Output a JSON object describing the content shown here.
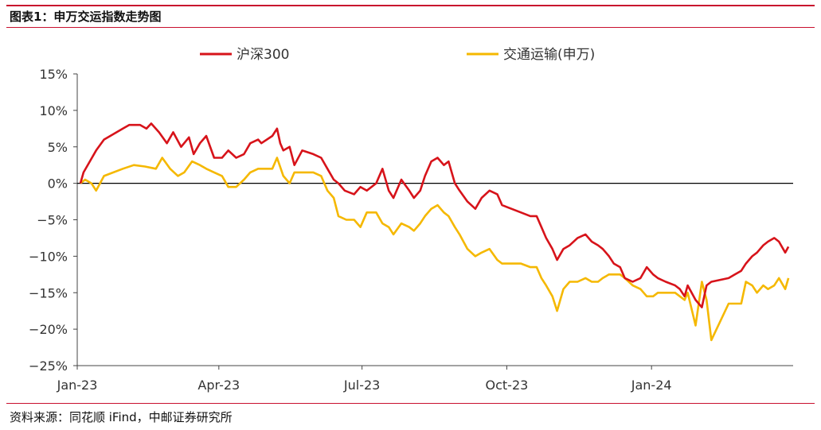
{
  "figure": {
    "title": "图表1：申万交运指数走势图",
    "source": "资料来源：同花顺 iFind，中邮证券研究所"
  },
  "colors": {
    "accent_rule": "#c8102e",
    "zero_line": "#000000",
    "axis": "#444444"
  },
  "chart_data": {
    "type": "line",
    "title": "",
    "xlabel": "",
    "ylabel": "",
    "x_unit": "date",
    "xlim": [
      "2023-01-01",
      "2024-03-31"
    ],
    "ylim": [
      -25,
      15
    ],
    "ytick_values": [
      -25,
      -20,
      -15,
      -10,
      -5,
      0,
      5,
      10,
      15
    ],
    "ytick_labels": [
      "−25%",
      "−20%",
      "−15%",
      "−10%",
      "−5%",
      "0%",
      "5%",
      "10%",
      "15%"
    ],
    "xticks": [
      {
        "date": "2023-01-01",
        "label": "Jan-23"
      },
      {
        "date": "2023-04-01",
        "label": "Apr-23"
      },
      {
        "date": "2023-07-01",
        "label": "Jul-23"
      },
      {
        "date": "2023-10-01",
        "label": "Oct-23"
      },
      {
        "date": "2024-01-01",
        "label": "Jan-24"
      }
    ],
    "grid": false,
    "reference_line": 0,
    "legend": "top",
    "series": [
      {
        "name": "沪深300",
        "color": "#d7131a",
        "points": [
          [
            "2023-01-03",
            0
          ],
          [
            "2023-01-05",
            1.5
          ],
          [
            "2023-01-09",
            3
          ],
          [
            "2023-01-13",
            4.5
          ],
          [
            "2023-01-18",
            6
          ],
          [
            "2023-01-30",
            7.5
          ],
          [
            "2023-02-03",
            8
          ],
          [
            "2023-02-10",
            8
          ],
          [
            "2023-02-14",
            7.5
          ],
          [
            "2023-02-17",
            8.2
          ],
          [
            "2023-02-22",
            7
          ],
          [
            "2023-02-27",
            5.5
          ],
          [
            "2023-03-03",
            7
          ],
          [
            "2023-03-08",
            5
          ],
          [
            "2023-03-13",
            6.3
          ],
          [
            "2023-03-16",
            4
          ],
          [
            "2023-03-20",
            5.5
          ],
          [
            "2023-03-24",
            6.5
          ],
          [
            "2023-03-29",
            3.5
          ],
          [
            "2023-04-03",
            3.5
          ],
          [
            "2023-04-07",
            4.5
          ],
          [
            "2023-04-12",
            3.5
          ],
          [
            "2023-04-17",
            4
          ],
          [
            "2023-04-21",
            5.5
          ],
          [
            "2023-04-26",
            6
          ],
          [
            "2023-04-28",
            5.5
          ],
          [
            "2023-05-05",
            6.5
          ],
          [
            "2023-05-08",
            7.5
          ],
          [
            "2023-05-10",
            5.5
          ],
          [
            "2023-05-12",
            4.5
          ],
          [
            "2023-05-16",
            5
          ],
          [
            "2023-05-19",
            2.5
          ],
          [
            "2023-05-24",
            4.5
          ],
          [
            "2023-05-31",
            4
          ],
          [
            "2023-06-05",
            3.5
          ],
          [
            "2023-06-09",
            2
          ],
          [
            "2023-06-13",
            0.5
          ],
          [
            "2023-06-16",
            0
          ],
          [
            "2023-06-20",
            -1
          ],
          [
            "2023-06-26",
            -1.5
          ],
          [
            "2023-06-30",
            -0.5
          ],
          [
            "2023-07-04",
            -1
          ],
          [
            "2023-07-10",
            0
          ],
          [
            "2023-07-14",
            2
          ],
          [
            "2023-07-18",
            -1
          ],
          [
            "2023-07-21",
            -2
          ],
          [
            "2023-07-26",
            0.5
          ],
          [
            "2023-07-31",
            -1
          ],
          [
            "2023-08-03",
            -2
          ],
          [
            "2023-08-07",
            -1
          ],
          [
            "2023-08-10",
            1
          ],
          [
            "2023-08-14",
            3
          ],
          [
            "2023-08-18",
            3.5
          ],
          [
            "2023-08-22",
            2.5
          ],
          [
            "2023-08-25",
            3
          ],
          [
            "2023-08-29",
            0
          ],
          [
            "2023-09-01",
            -1
          ],
          [
            "2023-09-06",
            -2.5
          ],
          [
            "2023-09-11",
            -3.5
          ],
          [
            "2023-09-15",
            -2
          ],
          [
            "2023-09-20",
            -1
          ],
          [
            "2023-09-25",
            -1.5
          ],
          [
            "2023-09-28",
            -3
          ],
          [
            "2023-10-10",
            -4
          ],
          [
            "2023-10-16",
            -4.5
          ],
          [
            "2023-10-20",
            -4.5
          ],
          [
            "2023-10-23",
            -6
          ],
          [
            "2023-10-26",
            -7.5
          ],
          [
            "2023-10-30",
            -9
          ],
          [
            "2023-11-02",
            -10.5
          ],
          [
            "2023-11-06",
            -9
          ],
          [
            "2023-11-10",
            -8.5
          ],
          [
            "2023-11-15",
            -7.5
          ],
          [
            "2023-11-20",
            -7
          ],
          [
            "2023-11-24",
            -8
          ],
          [
            "2023-11-28",
            -8.5
          ],
          [
            "2023-12-01",
            -9
          ],
          [
            "2023-12-05",
            -10
          ],
          [
            "2023-12-08",
            -11
          ],
          [
            "2023-12-12",
            -11.5
          ],
          [
            "2023-12-15",
            -13
          ],
          [
            "2023-12-20",
            -13.5
          ],
          [
            "2023-12-25",
            -13
          ],
          [
            "2023-12-29",
            -11.5
          ],
          [
            "2024-01-02",
            -12.5
          ],
          [
            "2024-01-05",
            -13
          ],
          [
            "2024-01-10",
            -13.5
          ],
          [
            "2024-01-16",
            -14
          ],
          [
            "2024-01-19",
            -14.5
          ],
          [
            "2024-01-22",
            -15.5
          ],
          [
            "2024-01-24",
            -14
          ],
          [
            "2024-01-29",
            -16
          ],
          [
            "2024-02-02",
            -17
          ],
          [
            "2024-02-05",
            -14
          ],
          [
            "2024-02-08",
            -13.5
          ],
          [
            "2024-02-19",
            -13
          ],
          [
            "2024-02-23",
            -12.5
          ],
          [
            "2024-02-27",
            -12
          ],
          [
            "2024-03-01",
            -11
          ],
          [
            "2024-03-05",
            -10
          ],
          [
            "2024-03-08",
            -9.5
          ],
          [
            "2024-03-12",
            -8.5
          ],
          [
            "2024-03-15",
            -8
          ],
          [
            "2024-03-19",
            -7.5
          ],
          [
            "2024-03-22",
            -8
          ],
          [
            "2024-03-26",
            -9.5
          ],
          [
            "2024-03-28",
            -8.7
          ]
        ]
      },
      {
        "name": "交通运输(申万)",
        "color": "#f5b800",
        "points": [
          [
            "2023-01-03",
            0
          ],
          [
            "2023-01-06",
            0.5
          ],
          [
            "2023-01-10",
            0
          ],
          [
            "2023-01-13",
            -1
          ],
          [
            "2023-01-18",
            1
          ],
          [
            "2023-01-30",
            2
          ],
          [
            "2023-02-06",
            2.5
          ],
          [
            "2023-02-13",
            2.3
          ],
          [
            "2023-02-20",
            2
          ],
          [
            "2023-02-24",
            3.5
          ],
          [
            "2023-03-01",
            2
          ],
          [
            "2023-03-06",
            1
          ],
          [
            "2023-03-10",
            1.5
          ],
          [
            "2023-03-15",
            3
          ],
          [
            "2023-03-20",
            2.5
          ],
          [
            "2023-03-24",
            2
          ],
          [
            "2023-03-29",
            1.5
          ],
          [
            "2023-04-03",
            1
          ],
          [
            "2023-04-07",
            -0.5
          ],
          [
            "2023-04-12",
            -0.5
          ],
          [
            "2023-04-17",
            0.5
          ],
          [
            "2023-04-21",
            1.5
          ],
          [
            "2023-04-26",
            2
          ],
          [
            "2023-05-05",
            2
          ],
          [
            "2023-05-08",
            3.5
          ],
          [
            "2023-05-12",
            1
          ],
          [
            "2023-05-16",
            0
          ],
          [
            "2023-05-19",
            1.5
          ],
          [
            "2023-05-24",
            1.5
          ],
          [
            "2023-05-31",
            1.5
          ],
          [
            "2023-06-05",
            1
          ],
          [
            "2023-06-09",
            -1
          ],
          [
            "2023-06-13",
            -2
          ],
          [
            "2023-06-16",
            -4.5
          ],
          [
            "2023-06-21",
            -5
          ],
          [
            "2023-06-26",
            -5
          ],
          [
            "2023-06-30",
            -6
          ],
          [
            "2023-07-04",
            -4
          ],
          [
            "2023-07-10",
            -4
          ],
          [
            "2023-07-14",
            -5.5
          ],
          [
            "2023-07-18",
            -6
          ],
          [
            "2023-07-21",
            -7
          ],
          [
            "2023-07-26",
            -5.5
          ],
          [
            "2023-07-31",
            -6
          ],
          [
            "2023-08-03",
            -6.5
          ],
          [
            "2023-08-07",
            -5.5
          ],
          [
            "2023-08-10",
            -4.5
          ],
          [
            "2023-08-14",
            -3.5
          ],
          [
            "2023-08-18",
            -3
          ],
          [
            "2023-08-22",
            -4
          ],
          [
            "2023-08-25",
            -4.5
          ],
          [
            "2023-08-29",
            -6
          ],
          [
            "2023-09-01",
            -7
          ],
          [
            "2023-09-06",
            -9
          ],
          [
            "2023-09-11",
            -10
          ],
          [
            "2023-09-15",
            -9.5
          ],
          [
            "2023-09-20",
            -9
          ],
          [
            "2023-09-25",
            -10.5
          ],
          [
            "2023-09-28",
            -11
          ],
          [
            "2023-10-10",
            -11
          ],
          [
            "2023-10-16",
            -11.5
          ],
          [
            "2023-10-20",
            -11.5
          ],
          [
            "2023-10-23",
            -13
          ],
          [
            "2023-10-26",
            -14
          ],
          [
            "2023-10-30",
            -15.5
          ],
          [
            "2023-11-02",
            -17.5
          ],
          [
            "2023-11-06",
            -14.5
          ],
          [
            "2023-11-10",
            -13.5
          ],
          [
            "2023-11-15",
            -13.5
          ],
          [
            "2023-11-20",
            -13
          ],
          [
            "2023-11-24",
            -13.5
          ],
          [
            "2023-11-28",
            -13.5
          ],
          [
            "2023-12-01",
            -13
          ],
          [
            "2023-12-05",
            -12.5
          ],
          [
            "2023-12-08",
            -12.5
          ],
          [
            "2023-12-12",
            -12.5
          ],
          [
            "2023-12-15",
            -13
          ],
          [
            "2023-12-20",
            -14
          ],
          [
            "2023-12-25",
            -14.5
          ],
          [
            "2023-12-29",
            -15.5
          ],
          [
            "2024-01-02",
            -15.5
          ],
          [
            "2024-01-05",
            -15
          ],
          [
            "2024-01-10",
            -15
          ],
          [
            "2024-01-16",
            -15
          ],
          [
            "2024-01-19",
            -15.5
          ],
          [
            "2024-01-22",
            -16
          ],
          [
            "2024-01-24",
            -15
          ],
          [
            "2024-01-29",
            -19.5
          ],
          [
            "2024-02-02",
            -13.5
          ],
          [
            "2024-02-05",
            -16
          ],
          [
            "2024-02-08",
            -21.5
          ],
          [
            "2024-02-19",
            -16.5
          ],
          [
            "2024-02-23",
            -16.5
          ],
          [
            "2024-02-27",
            -16.5
          ],
          [
            "2024-03-01",
            -13.5
          ],
          [
            "2024-03-05",
            -14
          ],
          [
            "2024-03-08",
            -15
          ],
          [
            "2024-03-12",
            -14
          ],
          [
            "2024-03-15",
            -14.5
          ],
          [
            "2024-03-19",
            -14
          ],
          [
            "2024-03-22",
            -13
          ],
          [
            "2024-03-26",
            -14.5
          ],
          [
            "2024-03-28",
            -13
          ]
        ]
      }
    ]
  }
}
